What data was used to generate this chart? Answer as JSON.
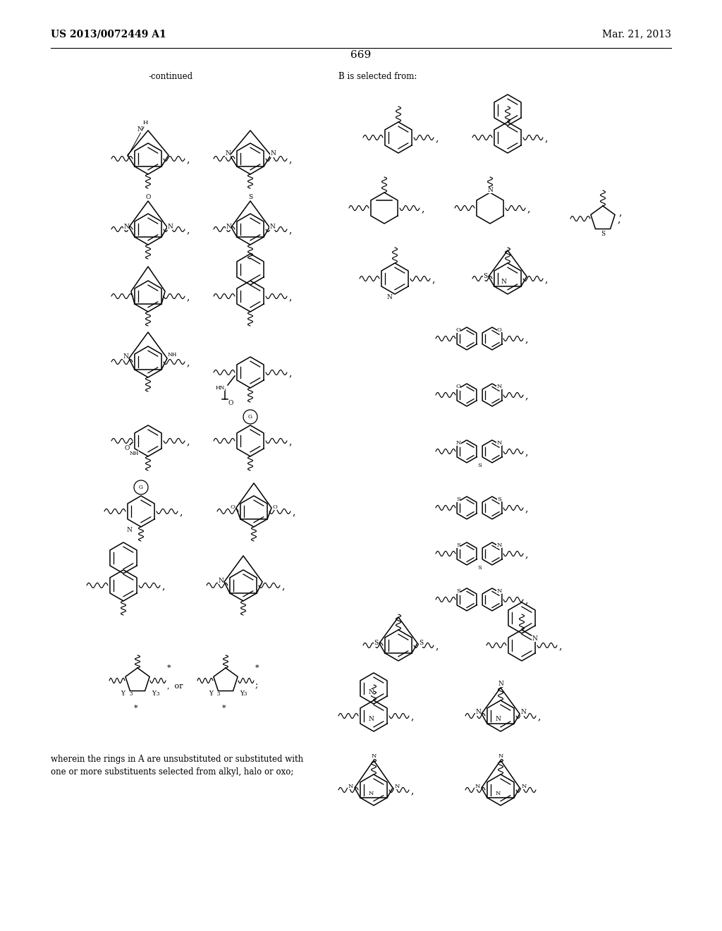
{
  "page_header_left": "US 2013/0072449 A1",
  "page_header_right": "Mar. 21, 2013",
  "page_number": "669",
  "continued_label": "-continued",
  "b_label": "B is selected from:",
  "footer_text": "wherein the rings in A are unsubstituted or substituted with\none or more substituents selected from alkyl, halo or oxo;",
  "bg": "#ffffff",
  "fg": "#000000"
}
